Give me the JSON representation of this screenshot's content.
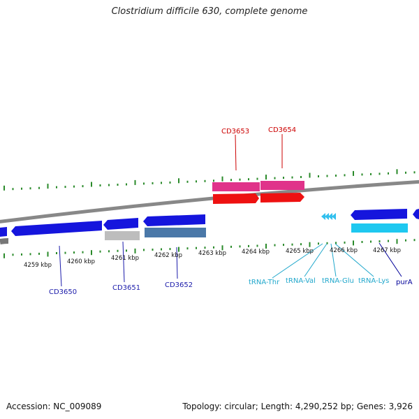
{
  "title": "Clostridium difficile 630, complete genome",
  "footer": {
    "accession": "Accession: NC_009089",
    "summary": "Topology: circular; Length: 4,290,252 bp; Genes: 3,926"
  },
  "colors": {
    "pink": "#e0338a",
    "red": "#ee1111",
    "blue": "#1515dd",
    "steel": "#4a78a8",
    "grey": "#bdbdbd",
    "cyan": "#1ec8f0",
    "green": "#2a8a2a",
    "label_red": "#cc0000",
    "label_blue": "#1a1aaa",
    "label_cyan": "#22a8cc",
    "label_navy": "#000099"
  },
  "ticks": [
    {
      "label": "4259 kbp"
    },
    {
      "label": "4260 kbp"
    },
    {
      "label": "4261 kbp"
    },
    {
      "label": "4262 kbp"
    },
    {
      "label": "4263 kbp"
    },
    {
      "label": "4264 kbp"
    },
    {
      "label": "4265 kbp"
    },
    {
      "label": "4266 kbp"
    },
    {
      "label": "4267 kbp"
    }
  ],
  "genes": {
    "cd3653": "CD3653",
    "cd3654": "CD3654",
    "cd3650": "CD3650",
    "cd3651": "CD3651",
    "cd3652": "CD3652",
    "trna_thr": "tRNA-Thr",
    "trna_val": "tRNA-Val",
    "trna_glu": "tRNA-Glu",
    "trna_lys": "tRNA-Lys",
    "pura": "purA"
  }
}
